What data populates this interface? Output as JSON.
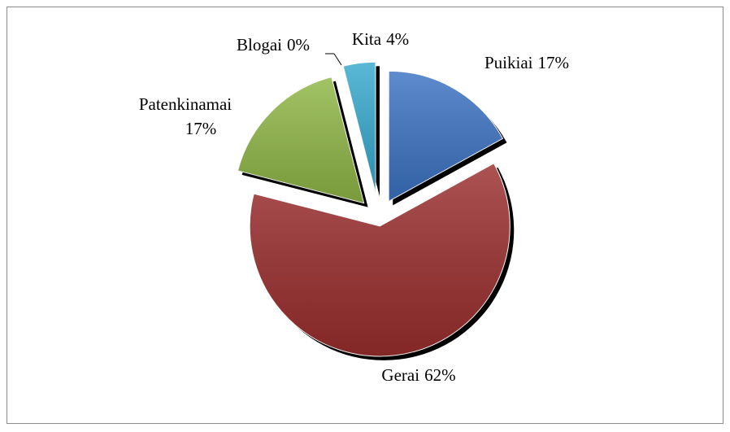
{
  "chart_data": {
    "type": "pie",
    "categories": [
      "Puikiai",
      "Gerai",
      "Patenkinamai",
      "Blogai",
      "Kita"
    ],
    "values": [
      17,
      62,
      17,
      0,
      4
    ],
    "value_labels": [
      "17%",
      "62%",
      "17%",
      "0%",
      "4%"
    ],
    "colors": [
      "#3b72c2",
      "#9a2d2d",
      "#8fb646",
      "#7a5ea8",
      "#35a9cd"
    ]
  }
}
